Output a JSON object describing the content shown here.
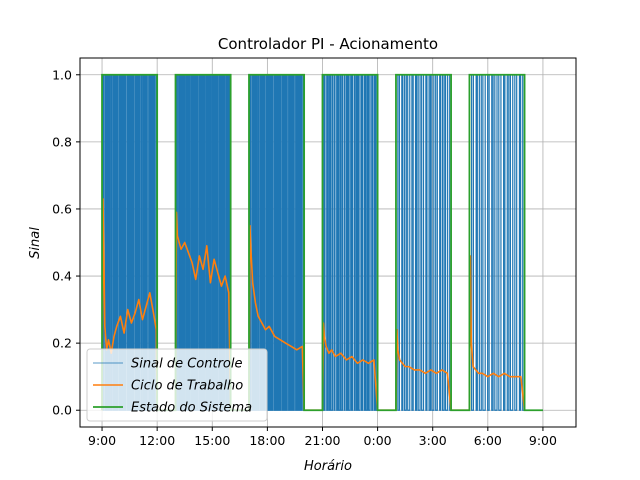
{
  "chart_data": {
    "type": "line",
    "title": "Controlador PI - Acionamento",
    "xlabel": "Horário",
    "ylabel": "Sinal",
    "xlim_hours": [
      7.8,
      34.8
    ],
    "ylim": [
      -0.05,
      1.05
    ],
    "grid": true,
    "legend_placement": "lower-left",
    "x_ticks": [
      {
        "hour": 9,
        "label": "9:00"
      },
      {
        "hour": 12,
        "label": "12:00"
      },
      {
        "hour": 15,
        "label": "15:00"
      },
      {
        "hour": 18,
        "label": "18:00"
      },
      {
        "hour": 21,
        "label": "21:00"
      },
      {
        "hour": 24,
        "label": "0:00"
      },
      {
        "hour": 27,
        "label": "3:00"
      },
      {
        "hour": 30,
        "label": "6:00"
      },
      {
        "hour": 33,
        "label": "9:00"
      }
    ],
    "y_ticks": [
      {
        "value": 0.0,
        "label": "0.0"
      },
      {
        "value": 0.2,
        "label": "0.2"
      },
      {
        "value": 0.4,
        "label": "0.4"
      },
      {
        "value": 0.6,
        "label": "0.6"
      },
      {
        "value": 0.8,
        "label": "0.8"
      },
      {
        "value": 1.0,
        "label": "1.0"
      }
    ],
    "series": [
      {
        "name": "Sinal de Controle",
        "color": "#1f77b4",
        "on_periods": [
          {
            "start": 9.0,
            "end": 12.0,
            "pulses": 28
          },
          {
            "start": 13.0,
            "end": 16.0,
            "pulses": 30
          },
          {
            "start": 17.0,
            "end": 20.0,
            "pulses": 28
          },
          {
            "start": 21.0,
            "end": 24.0,
            "pulses": 22
          },
          {
            "start": 25.0,
            "end": 28.0,
            "pulses": 16
          },
          {
            "start": 29.0,
            "end": 32.0,
            "pulses": 14
          }
        ]
      },
      {
        "name": "Ciclo de Trabalho",
        "color": "#ff7f0e",
        "x": [
          9.0,
          9.05,
          9.1,
          9.15,
          9.25,
          9.35,
          9.5,
          9.65,
          9.8,
          10.0,
          10.2,
          10.4,
          10.6,
          10.8,
          11.0,
          11.2,
          11.4,
          11.6,
          11.8,
          11.95,
          12.0,
          13.0,
          13.05,
          13.1,
          13.3,
          13.5,
          13.7,
          13.9,
          14.1,
          14.3,
          14.5,
          14.7,
          14.9,
          15.1,
          15.3,
          15.5,
          15.7,
          15.9,
          16.0,
          17.0,
          17.05,
          17.1,
          17.2,
          17.35,
          17.5,
          17.7,
          17.9,
          18.1,
          18.4,
          18.7,
          19.0,
          19.3,
          19.6,
          19.9,
          20.0,
          21.0,
          21.05,
          21.1,
          21.2,
          21.35,
          21.5,
          21.7,
          22.0,
          22.3,
          22.6,
          22.9,
          23.2,
          23.5,
          23.8,
          24.0,
          25.0,
          25.05,
          25.1,
          25.2,
          25.35,
          25.5,
          25.7,
          26.0,
          26.3,
          26.6,
          26.9,
          27.2,
          27.5,
          27.8,
          28.0,
          29.0,
          29.05,
          29.1,
          29.2,
          29.35,
          29.5,
          29.7,
          30.0,
          30.3,
          30.6,
          30.9,
          31.2,
          31.5,
          31.8,
          32.0
        ],
        "y": [
          0.0,
          0.63,
          0.45,
          0.25,
          0.18,
          0.21,
          0.17,
          0.22,
          0.25,
          0.28,
          0.23,
          0.3,
          0.26,
          0.29,
          0.33,
          0.27,
          0.31,
          0.35,
          0.29,
          0.24,
          0.0,
          0.0,
          0.59,
          0.52,
          0.48,
          0.5,
          0.47,
          0.44,
          0.39,
          0.46,
          0.42,
          0.49,
          0.38,
          0.45,
          0.41,
          0.37,
          0.4,
          0.35,
          0.0,
          0.0,
          0.55,
          0.48,
          0.38,
          0.32,
          0.28,
          0.26,
          0.24,
          0.25,
          0.22,
          0.21,
          0.2,
          0.19,
          0.18,
          0.19,
          0.0,
          0.0,
          0.26,
          0.22,
          0.19,
          0.17,
          0.18,
          0.16,
          0.17,
          0.15,
          0.16,
          0.14,
          0.15,
          0.14,
          0.15,
          0.0,
          0.0,
          0.24,
          0.18,
          0.15,
          0.14,
          0.13,
          0.13,
          0.12,
          0.12,
          0.11,
          0.12,
          0.11,
          0.12,
          0.11,
          0.0,
          0.0,
          0.46,
          0.2,
          0.13,
          0.12,
          0.11,
          0.11,
          0.1,
          0.11,
          0.1,
          0.11,
          0.1,
          0.1,
          0.1,
          0.0
        ]
      },
      {
        "name": "Estado do Sistema",
        "color": "#2ca02c",
        "x": [
          9.0,
          9.0,
          12.0,
          12.0,
          13.0,
          13.0,
          16.0,
          16.0,
          17.0,
          17.0,
          20.0,
          20.0,
          21.0,
          21.0,
          24.0,
          24.0,
          25.0,
          25.0,
          28.0,
          28.0,
          29.0,
          29.0,
          32.0,
          32.0,
          33.0
        ],
        "y": [
          0,
          1,
          1,
          0,
          0,
          1,
          1,
          0,
          0,
          1,
          1,
          0,
          0,
          1,
          1,
          0,
          0,
          1,
          1,
          0,
          0,
          1,
          1,
          0,
          0
        ]
      }
    ]
  }
}
